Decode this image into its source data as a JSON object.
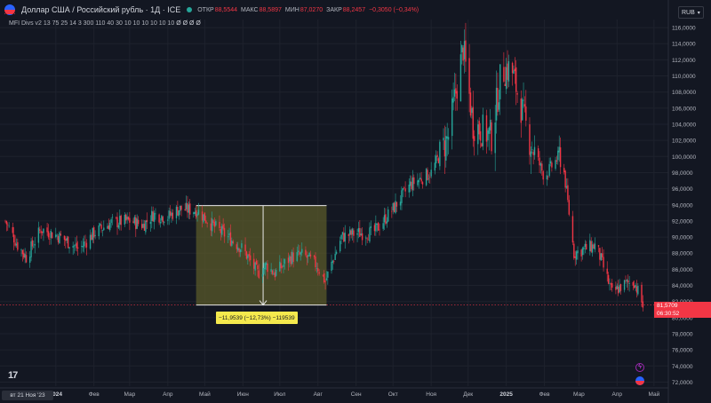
{
  "header": {
    "symbol": "Доллар США / Российский рубль · 1Д · ICE",
    "open_label": "ОТКР",
    "open_value": "88,5544",
    "high_label": "МАКС",
    "high_value": "88,5897",
    "low_label": "МИН",
    "low_value": "87,0270",
    "close_label": "ЗАКР",
    "close_value": "88,2457",
    "change_value": "−0,3050 (−0,34%)"
  },
  "indicator": {
    "name": "MFI Divs v2",
    "params": "13 75 25 14 3 300 110 40 30 10 10 10 10 10 10",
    "values": "Ø Ø Ø Ø"
  },
  "currency_button": "RUB",
  "measure": {
    "label": "−11,9539 (−12,73%) −119539"
  },
  "last_price": {
    "value": "81,5709",
    "countdown": "06:30:52"
  },
  "first_date_label": "вт 21 Ноя '23",
  "colors": {
    "background": "#131722",
    "up": "#26a69a",
    "down": "#f23645",
    "measure_fill": "#5a5a2a",
    "measure_label_bg": "#f5e94d"
  },
  "chart_data": {
    "type": "candlestick",
    "y_axis_ticks": [
      "72,0000",
      "74,0000",
      "76,0000",
      "78,0000",
      "80,0000",
      "82,0000",
      "84,0000",
      "86,0000",
      "88,0000",
      "90,0000",
      "92,0000",
      "94,0000",
      "96,0000",
      "98,0000",
      "100,0000",
      "102,0000",
      "104,0000",
      "106,0000",
      "108,0000",
      "110,0000",
      "112,0000",
      "114,0000",
      "116,0000"
    ],
    "ylim": [
      71.5,
      117
    ],
    "x_axis_ticks": [
      {
        "label": "2024",
        "date": "2024-01-01"
      },
      {
        "label": "Фев",
        "date": "2024-02-01"
      },
      {
        "label": "Мар",
        "date": "2024-03-01"
      },
      {
        "label": "Апр",
        "date": "2024-04-01"
      },
      {
        "label": "Май",
        "date": "2024-05-01"
      },
      {
        "label": "Июн",
        "date": "2024-06-01"
      },
      {
        "label": "Июл",
        "date": "2024-07-01"
      },
      {
        "label": "Авг",
        "date": "2024-08-01"
      },
      {
        "label": "Сен",
        "date": "2024-09-01"
      },
      {
        "label": "Окт",
        "date": "2024-10-01"
      },
      {
        "label": "Ноя",
        "date": "2024-11-01"
      },
      {
        "label": "Дек",
        "date": "2024-12-01"
      },
      {
        "label": "2025",
        "date": "2025-01-01"
      },
      {
        "label": "Фев",
        "date": "2025-02-01"
      },
      {
        "label": "Мар",
        "date": "2025-03-01"
      },
      {
        "label": "Апр",
        "date": "2025-04-01"
      },
      {
        "label": "Май",
        "date": "2025-05-01"
      }
    ],
    "price_path": [
      [
        "2023-11-21",
        92.0
      ],
      [
        "2023-12-01",
        89.0
      ],
      [
        "2023-12-08",
        87.5
      ],
      [
        "2023-12-20",
        91.0
      ],
      [
        "2024-01-05",
        90.0
      ],
      [
        "2024-01-20",
        88.5
      ],
      [
        "2024-02-01",
        90.5
      ],
      [
        "2024-02-15",
        91.8
      ],
      [
        "2024-03-01",
        92.0
      ],
      [
        "2024-03-12",
        91.5
      ],
      [
        "2024-03-20",
        92.8
      ],
      [
        "2024-04-01",
        92.5
      ],
      [
        "2024-04-10",
        93.5
      ],
      [
        "2024-04-25",
        93.3
      ],
      [
        "2024-05-07",
        91.5
      ],
      [
        "2024-05-20",
        90.0
      ],
      [
        "2024-06-01",
        88.5
      ],
      [
        "2024-06-13",
        85.5
      ],
      [
        "2024-06-20",
        86.5
      ],
      [
        "2024-06-27",
        85.5
      ],
      [
        "2024-07-10",
        87.5
      ],
      [
        "2024-07-20",
        87.8
      ],
      [
        "2024-07-31",
        86.5
      ],
      [
        "2024-08-07",
        84.5
      ],
      [
        "2024-08-20",
        90.0
      ],
      [
        "2024-09-01",
        90.5
      ],
      [
        "2024-09-15",
        90.5
      ],
      [
        "2024-10-01",
        93.5
      ],
      [
        "2024-10-15",
        96.5
      ],
      [
        "2024-11-01",
        98.0
      ],
      [
        "2024-11-15",
        102.5
      ],
      [
        "2024-11-27",
        113.5
      ],
      [
        "2024-12-05",
        104.0
      ],
      [
        "2024-12-20",
        102.5
      ],
      [
        "2024-12-28",
        110.5
      ],
      [
        "2025-01-05",
        111.0
      ],
      [
        "2025-01-20",
        102.0
      ],
      [
        "2025-02-01",
        97.5
      ],
      [
        "2025-02-15",
        100.5
      ],
      [
        "2025-02-25",
        88.0
      ],
      [
        "2025-03-05",
        88.5
      ],
      [
        "2025-03-15",
        89.0
      ],
      [
        "2025-03-28",
        83.0
      ],
      [
        "2025-04-05",
        84.0
      ],
      [
        "2025-04-15",
        84.5
      ],
      [
        "2025-04-22",
        81.5
      ]
    ],
    "last_value": 81.5709,
    "measure_range": {
      "start_date": "2024-04-24",
      "end_date": "2024-08-08",
      "high": 93.9,
      "low": 81.57
    }
  }
}
